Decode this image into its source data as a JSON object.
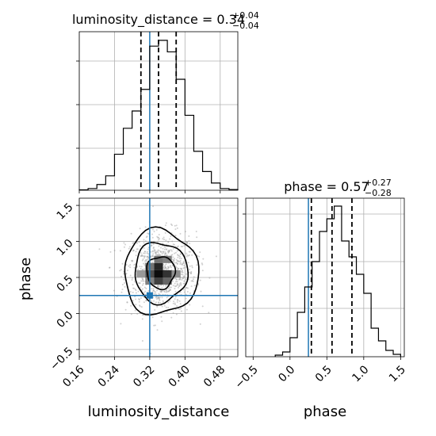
{
  "chart_data": [
    {
      "type": "histogram",
      "panel": "luminosity_distance marginal",
      "title": {
        "text": "luminosity_distance = 0.34",
        "sup": "+0.04",
        "sub": "−0.04"
      },
      "bin_edges": [
        0.16,
        0.18,
        0.2,
        0.22,
        0.24,
        0.26,
        0.28,
        0.3,
        0.32,
        0.34,
        0.36,
        0.38,
        0.4,
        0.42,
        0.44,
        0.46,
        0.48,
        0.5,
        0.52
      ],
      "counts": [
        0.3,
        1.2,
        4,
        10,
        25,
        43,
        55,
        70,
        100,
        104,
        96,
        77,
        52,
        27,
        13,
        5,
        1.2,
        0.5
      ],
      "xlim": [
        0.16,
        0.52
      ],
      "ylim": [
        0,
        110
      ],
      "quantiles": [
        0.3,
        0.34,
        0.38
      ],
      "truth": 0.32,
      "grid": true
    },
    {
      "type": "scatter",
      "panel": "luminosity_distance vs phase (2D posterior with contours)",
      "xlim": [
        0.16,
        0.52
      ],
      "ylim": [
        -0.6,
        1.6
      ],
      "xticks": [
        "0.16",
        "0.24",
        "0.32",
        "0.40",
        "0.48"
      ],
      "yticks": [
        "−0.5",
        "0.0",
        "0.5",
        "1.0",
        "1.5"
      ],
      "xlabel": "luminosity_distance",
      "ylabel": "phase",
      "center": [
        0.345,
        0.57
      ],
      "spread": [
        0.04,
        0.28
      ],
      "contour_levels_sigma": [
        0.8,
        1.5,
        2.1
      ],
      "truth": [
        0.32,
        0.25
      ],
      "density_squares": [
        {
          "x": 0.34,
          "y": 0.55,
          "level": 0.95
        },
        {
          "x": 0.34,
          "y": 0.65,
          "level": 0.85
        },
        {
          "x": 0.36,
          "y": 0.55,
          "level": 0.8
        },
        {
          "x": 0.32,
          "y": 0.55,
          "level": 0.7
        },
        {
          "x": 0.36,
          "y": 0.45,
          "level": 0.6
        },
        {
          "x": 0.34,
          "y": 0.45,
          "level": 0.75
        },
        {
          "x": 0.32,
          "y": 0.65,
          "level": 0.55
        },
        {
          "x": 0.36,
          "y": 0.75,
          "level": 0.5
        },
        {
          "x": 0.32,
          "y": 0.45,
          "level": 0.5
        },
        {
          "x": 0.34,
          "y": 0.75,
          "level": 0.55
        },
        {
          "x": 0.38,
          "y": 0.55,
          "level": 0.45
        },
        {
          "x": 0.3,
          "y": 0.55,
          "level": 0.4
        }
      ],
      "grid": true
    },
    {
      "type": "histogram",
      "panel": "phase marginal",
      "title": {
        "text": "phase = 0.57",
        "sup": "+0.27",
        "sub": "−0.28"
      },
      "bin_edges": [
        -0.2,
        -0.1,
        0.0,
        0.1,
        0.2,
        0.3,
        0.4,
        0.5,
        0.6,
        0.7,
        0.8,
        0.9,
        1.0,
        1.1,
        1.2,
        1.3,
        1.4,
        1.5
      ],
      "counts": [
        1,
        3,
        12,
        28,
        44,
        60,
        79,
        87,
        95,
        73,
        63,
        52,
        40,
        18,
        10,
        4,
        1.5
      ],
      "xlim": [
        -0.6,
        1.55
      ],
      "ylim": [
        0,
        100
      ],
      "quantiles": [
        0.29,
        0.57,
        0.84
      ],
      "truth": 0.25,
      "xticks": [
        "−0.5",
        "0.0",
        "0.5",
        "1.0",
        "1.5"
      ],
      "xlabel": "phase",
      "grid": true
    }
  ],
  "colors": {
    "truth": "#1f77b4",
    "hist": "#000000",
    "grid": "#b0b0b0"
  }
}
